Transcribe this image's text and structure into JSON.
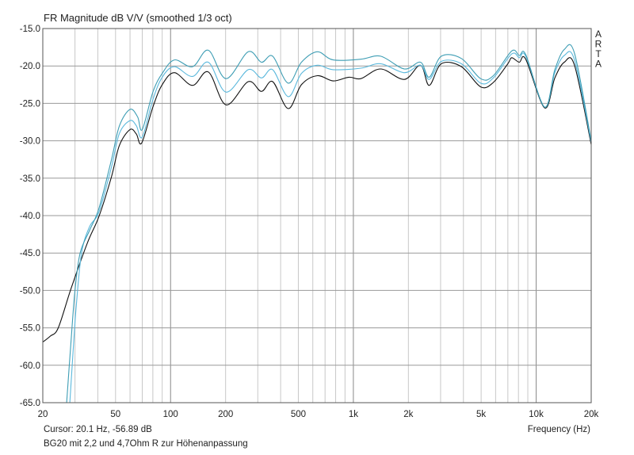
{
  "chart_data": {
    "type": "line",
    "title": "FR Magnitude dB V/V (smoothed 1/3 oct)",
    "xlabel": "Frequency (Hz)",
    "ylabel": "",
    "xscale": "log",
    "xlim": [
      20,
      20000
    ],
    "ylim": [
      -65,
      -15
    ],
    "grid": true,
    "x_ticks": [
      {
        "v": 20,
        "label": "20"
      },
      {
        "v": 50,
        "label": "50"
      },
      {
        "v": 100,
        "label": "100"
      },
      {
        "v": 200,
        "label": "200"
      },
      {
        "v": 500,
        "label": "500"
      },
      {
        "v": 1000,
        "label": "1k"
      },
      {
        "v": 2000,
        "label": "2k"
      },
      {
        "v": 5000,
        "label": "5k"
      },
      {
        "v": 10000,
        "label": "10k"
      },
      {
        "v": 20000,
        "label": "20k"
      }
    ],
    "y_ticks": [
      "-15.0",
      "-20.0",
      "-25.0",
      "-30.0",
      "-35.0",
      "-40.0",
      "-45.0",
      "-50.0",
      "-55.0",
      "-60.0",
      "-65.0"
    ],
    "watermark": [
      "A",
      "R",
      "T",
      "A"
    ],
    "cursor_text": "Cursor: 20.1 Hz, -56.89 dB",
    "caption": "BG20 mit 2,2 und 4,7Ohm R zur Höhenanpassung",
    "series": [
      {
        "name": "measurement-black",
        "color": "#111111",
        "points": [
          [
            20,
            -56.9
          ],
          [
            22,
            -56.1
          ],
          [
            24.3,
            -55
          ],
          [
            28.6,
            -49.7
          ],
          [
            35,
            -43.7
          ],
          [
            40.6,
            -40.1
          ],
          [
            47.5,
            -34.8
          ],
          [
            52.5,
            -30.6
          ],
          [
            60,
            -28.5
          ],
          [
            65,
            -29.1
          ],
          [
            69.5,
            -30.3
          ],
          [
            80,
            -25.5
          ],
          [
            90,
            -22.5
          ],
          [
            105,
            -20.9
          ],
          [
            132,
            -22.6
          ],
          [
            161,
            -20.8
          ],
          [
            201,
            -25.2
          ],
          [
            266,
            -22.1
          ],
          [
            314,
            -23.4
          ],
          [
            362,
            -22.1
          ],
          [
            440,
            -25.7
          ],
          [
            520,
            -22.5
          ],
          [
            635,
            -21.3
          ],
          [
            775,
            -22.0
          ],
          [
            945,
            -21.5
          ],
          [
            1100,
            -21.7
          ],
          [
            1410,
            -20.4
          ],
          [
            1900,
            -21.8
          ],
          [
            2330,
            -19.9
          ],
          [
            2600,
            -22.6
          ],
          [
            3030,
            -19.7
          ],
          [
            3900,
            -20.1
          ],
          [
            4970,
            -22.8
          ],
          [
            5830,
            -22.2
          ],
          [
            7000,
            -19.7
          ],
          [
            7350,
            -18.9
          ],
          [
            8080,
            -19.5
          ],
          [
            8770,
            -19.1
          ],
          [
            11120,
            -25.6
          ],
          [
            12650,
            -21.6
          ],
          [
            14250,
            -19.5
          ],
          [
            16200,
            -19.9
          ],
          [
            20000,
            -30.5
          ]
        ]
      },
      {
        "name": "measurement-light-blue",
        "color": "#5ab8dc",
        "points": [
          [
            28.1,
            -65
          ],
          [
            29.5,
            -57
          ],
          [
            30.5,
            -52
          ],
          [
            32.6,
            -45
          ],
          [
            36,
            -41.5
          ],
          [
            40.6,
            -39.5
          ],
          [
            47.5,
            -33.5
          ],
          [
            52.5,
            -29
          ],
          [
            60,
            -27.3
          ],
          [
            65,
            -28
          ],
          [
            70,
            -29.5
          ],
          [
            80,
            -24.5
          ],
          [
            90,
            -21.5
          ],
          [
            105,
            -20.1
          ],
          [
            132,
            -21.4
          ],
          [
            161,
            -19.5
          ],
          [
            201,
            -23.5
          ],
          [
            266,
            -20.5
          ],
          [
            314,
            -21.6
          ],
          [
            362,
            -20.5
          ],
          [
            440,
            -24.1
          ],
          [
            520,
            -21.0
          ],
          [
            635,
            -19.9
          ],
          [
            775,
            -20.5
          ],
          [
            1100,
            -20.3
          ],
          [
            1410,
            -19.7
          ],
          [
            1900,
            -20.9
          ],
          [
            2330,
            -19.9
          ],
          [
            2600,
            -21.8
          ],
          [
            3030,
            -19.4
          ],
          [
            3900,
            -19.7
          ],
          [
            4970,
            -22.3
          ],
          [
            5830,
            -21.6
          ],
          [
            7350,
            -18.4
          ],
          [
            8080,
            -18.9
          ],
          [
            8770,
            -18.7
          ],
          [
            11120,
            -25.5
          ],
          [
            12650,
            -20.9
          ],
          [
            14250,
            -18.6
          ],
          [
            16200,
            -19.2
          ],
          [
            20000,
            -30.2
          ]
        ]
      },
      {
        "name": "measurement-teal",
        "color": "#3d9db4",
        "points": [
          [
            27,
            -65
          ],
          [
            28.5,
            -57
          ],
          [
            30,
            -50
          ],
          [
            32,
            -45
          ],
          [
            36,
            -42
          ],
          [
            40.6,
            -39
          ],
          [
            47.5,
            -32.5
          ],
          [
            52.5,
            -28
          ],
          [
            60,
            -25.8
          ],
          [
            66,
            -26.8
          ],
          [
            70,
            -28.5
          ],
          [
            80,
            -23.5
          ],
          [
            90,
            -21
          ],
          [
            105,
            -19.2
          ],
          [
            132,
            -20.1
          ],
          [
            161,
            -17.9
          ],
          [
            201,
            -21.7
          ],
          [
            266,
            -18.1
          ],
          [
            314,
            -19.5
          ],
          [
            362,
            -18.7
          ],
          [
            440,
            -22.3
          ],
          [
            520,
            -19.5
          ],
          [
            635,
            -18.1
          ],
          [
            775,
            -19.2
          ],
          [
            1100,
            -19.1
          ],
          [
            1410,
            -18.7
          ],
          [
            1900,
            -20.4
          ],
          [
            2330,
            -19.5
          ],
          [
            2600,
            -21.5
          ],
          [
            3030,
            -18.7
          ],
          [
            3900,
            -19.0
          ],
          [
            4970,
            -21.7
          ],
          [
            5830,
            -21.3
          ],
          [
            7350,
            -18.0
          ],
          [
            8080,
            -18.6
          ],
          [
            8770,
            -18.5
          ],
          [
            11120,
            -25.5
          ],
          [
            12650,
            -20.5
          ],
          [
            14250,
            -17.8
          ],
          [
            16200,
            -18.3
          ],
          [
            20000,
            -30.0
          ]
        ]
      }
    ]
  }
}
